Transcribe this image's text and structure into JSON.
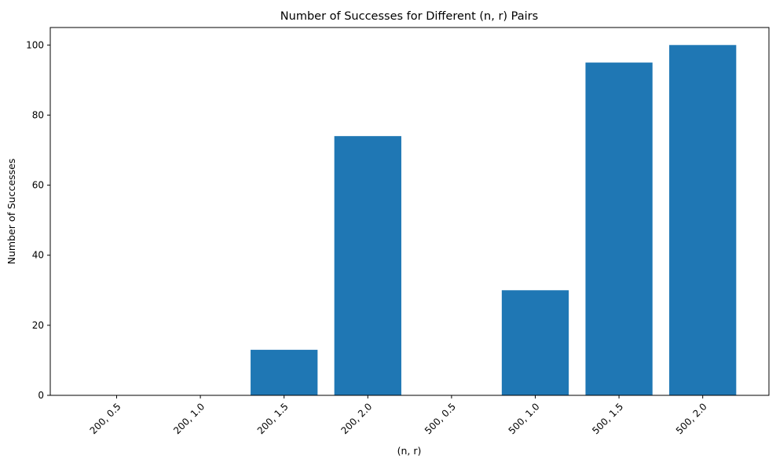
{
  "chart_data": {
    "type": "bar",
    "title": "Number of Successes for Different (n, r) Pairs",
    "xlabel": "(n, r)",
    "ylabel": "Number of Successes",
    "categories": [
      "200, 0.5",
      "200, 1.0",
      "200, 1.5",
      "200, 2.0",
      "500, 0.5",
      "500, 1.0",
      "500, 1.5",
      "500, 2.0"
    ],
    "values": [
      0,
      0,
      13,
      74,
      0,
      30,
      95,
      100
    ],
    "ylim": [
      0,
      105
    ],
    "yticks": [
      0,
      20,
      40,
      60,
      80,
      100
    ],
    "bar_color": "#1f77b4",
    "grid": false,
    "legend": false
  }
}
